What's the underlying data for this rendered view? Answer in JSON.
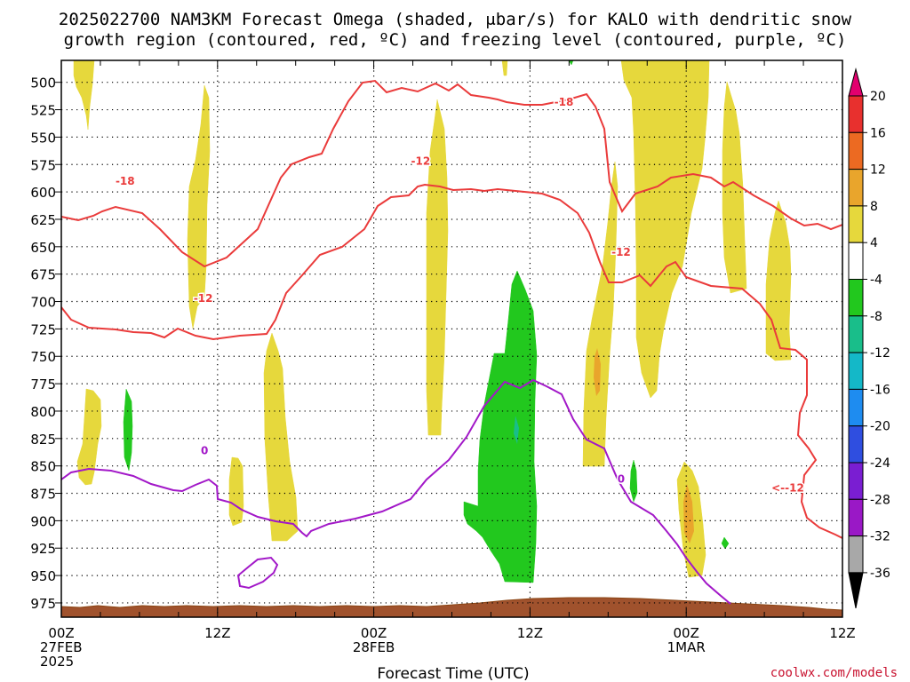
{
  "chart_data": {
    "type": "heatmap",
    "title_line1": "2025022700 NAM3KM Forecast Omega (shaded, μbar/s) for KALO with dendritic snow",
    "title_line2": "growth region (contoured, red, ºC) and freezing level (contoured, purple, ºC)",
    "xlabel": "Forecast Time (UTC)",
    "x_range_hours": [
      0,
      60
    ],
    "y_range_mb": [
      480,
      988
    ],
    "y_ticks": [
      500,
      525,
      550,
      575,
      600,
      625,
      650,
      675,
      700,
      725,
      750,
      775,
      800,
      825,
      850,
      875,
      900,
      925,
      950,
      975
    ],
    "x_ticks": [
      {
        "hour": 0,
        "line1": "00Z",
        "line2": "27FEB",
        "line3": "2025"
      },
      {
        "hour": 12,
        "line1": "12Z",
        "line2": "",
        "line3": ""
      },
      {
        "hour": 24,
        "line1": "00Z",
        "line2": "28FEB",
        "line3": ""
      },
      {
        "hour": 36,
        "line1": "12Z",
        "line2": "",
        "line3": ""
      },
      {
        "hour": 48,
        "line1": "00Z",
        "line2": "1MAR",
        "line3": ""
      },
      {
        "hour": 60,
        "line1": "12Z",
        "line2": "",
        "line3": ""
      }
    ],
    "colorbar": {
      "labels": [
        "20",
        "16",
        "12",
        "8",
        "4",
        "-4",
        "-8",
        "-12",
        "-16",
        "-20",
        "-24",
        "-28",
        "-32",
        "-36"
      ],
      "colors": [
        "#e2006e",
        "#e8302e",
        "#ec6a22",
        "#e9a52c",
        "#e6d83c",
        "#ffffff",
        "#22c81e",
        "#19be8a",
        "#14b8c8",
        "#1e8cf0",
        "#2f4ee0",
        "#7a1ed2",
        "#9a18c6",
        "#a8a8a8",
        "#000000"
      ]
    },
    "credit": "coolwx.com/models",
    "red_contour_labels": [
      {
        "text": "-18",
        "hour": 4.9,
        "mb": 590
      },
      {
        "text": "-18",
        "hour": 38.6,
        "mb": 518
      },
      {
        "text": "-12",
        "hour": 10.9,
        "mb": 697
      },
      {
        "text": "-12",
        "hour": 27.6,
        "mb": 572
      },
      {
        "text": "-12",
        "hour": 43.0,
        "mb": 655
      },
      {
        "text": "<--12",
        "hour": 55.8,
        "mb": 870
      }
    ],
    "purple_contour_labels": [
      {
        "text": "0",
        "hour": 11.0,
        "mb": 836
      },
      {
        "text": "0",
        "hour": 43.0,
        "mb": 862
      }
    ]
  }
}
